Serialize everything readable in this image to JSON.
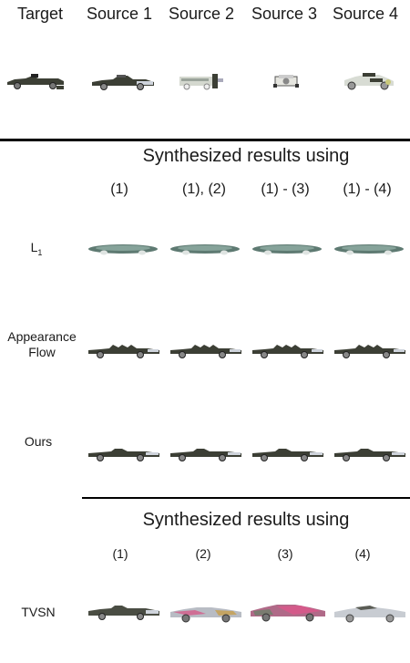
{
  "headers": {
    "target": "Target",
    "sources": [
      "Source 1",
      "Source 2",
      "Source 3",
      "Source 4"
    ]
  },
  "section1": {
    "title": "Synthesized results using",
    "columns": [
      "(1)",
      "(1), (2)",
      "(1) - (3)",
      "(1) - (4)"
    ],
    "rows": [
      {
        "label_main": "L",
        "label_sub": "1"
      },
      {
        "label": "Appearance\nFlow"
      },
      {
        "label": "Ours"
      }
    ]
  },
  "section2": {
    "title": "Synthesized results using",
    "columns": [
      "(1)",
      "(2)",
      "(3)",
      "(4)"
    ],
    "rows": [
      {
        "label": "TVSN"
      }
    ]
  },
  "colors": {
    "car_body_dark": "#3c3f35",
    "car_body_teal": "#5e7a72",
    "tvsn_pink": "#d45a8a",
    "tvsn_silver": "#b8bcc4"
  }
}
